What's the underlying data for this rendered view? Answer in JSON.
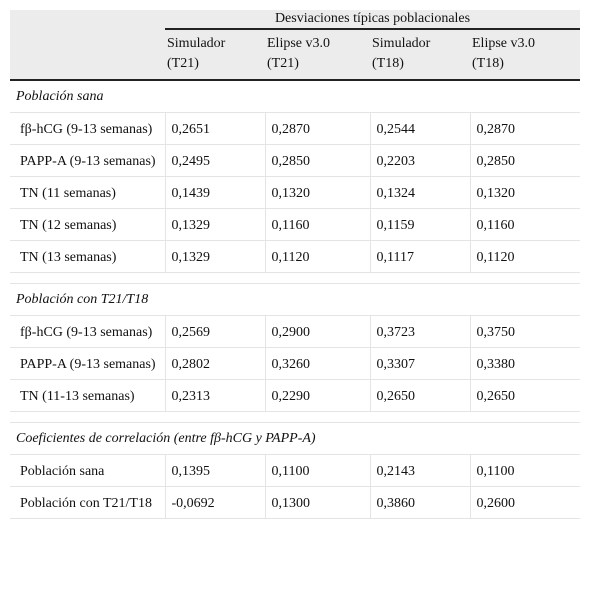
{
  "header": {
    "group": "Desviaciones típicas poblacionales",
    "columns": [
      [
        "Simulador",
        "(T21)"
      ],
      [
        "Elipse v3.0",
        "(T21)"
      ],
      [
        "Simulador",
        "(T18)"
      ],
      [
        "Elipse v3.0",
        "(T18)"
      ]
    ]
  },
  "sections": [
    {
      "title": "Población sana",
      "rows": [
        {
          "label": "fβ-hCG (9-13 semanas)",
          "values": [
            "0,2651",
            "0,2870",
            "0,2544",
            "0,2870"
          ]
        },
        {
          "label": "PAPP-A (9-13 semanas)",
          "values": [
            "0,2495",
            "0,2850",
            "0,2203",
            "0,2850"
          ]
        },
        {
          "label": "TN (11 semanas)",
          "values": [
            "0,1439",
            "0,1320",
            "0,1324",
            "0,1320"
          ]
        },
        {
          "label": "TN (12 semanas)",
          "values": [
            "0,1329",
            "0,1160",
            "0,1159",
            "0,1160"
          ]
        },
        {
          "label": "TN (13 semanas)",
          "values": [
            "0,1329",
            "0,1120",
            "0,1117",
            "0,1120"
          ]
        }
      ]
    },
    {
      "title": "Población con T21/T18",
      "rows": [
        {
          "label": "fβ-hCG (9-13 semanas)",
          "values": [
            "0,2569",
            "0,2900",
            "0,3723",
            "0,3750"
          ]
        },
        {
          "label": "PAPP-A (9-13 semanas)",
          "values": [
            "0,2802",
            "0,3260",
            "0,3307",
            "0,3380"
          ]
        },
        {
          "label": "TN (11-13 semanas)",
          "values": [
            "0,2313",
            "0,2290",
            "0,2650",
            "0,2650"
          ]
        }
      ]
    },
    {
      "title": "Coeficientes de correlación (entre fβ-hCG y PAPP-A)",
      "rows": [
        {
          "label": "Población sana",
          "values": [
            "0,1395",
            "0,1100",
            "0,2143",
            "0,1100"
          ]
        },
        {
          "label": "Población con T21/T18",
          "values": [
            "-0,0692",
            "0,1300",
            "0,3860",
            "0,2600"
          ]
        }
      ]
    }
  ]
}
